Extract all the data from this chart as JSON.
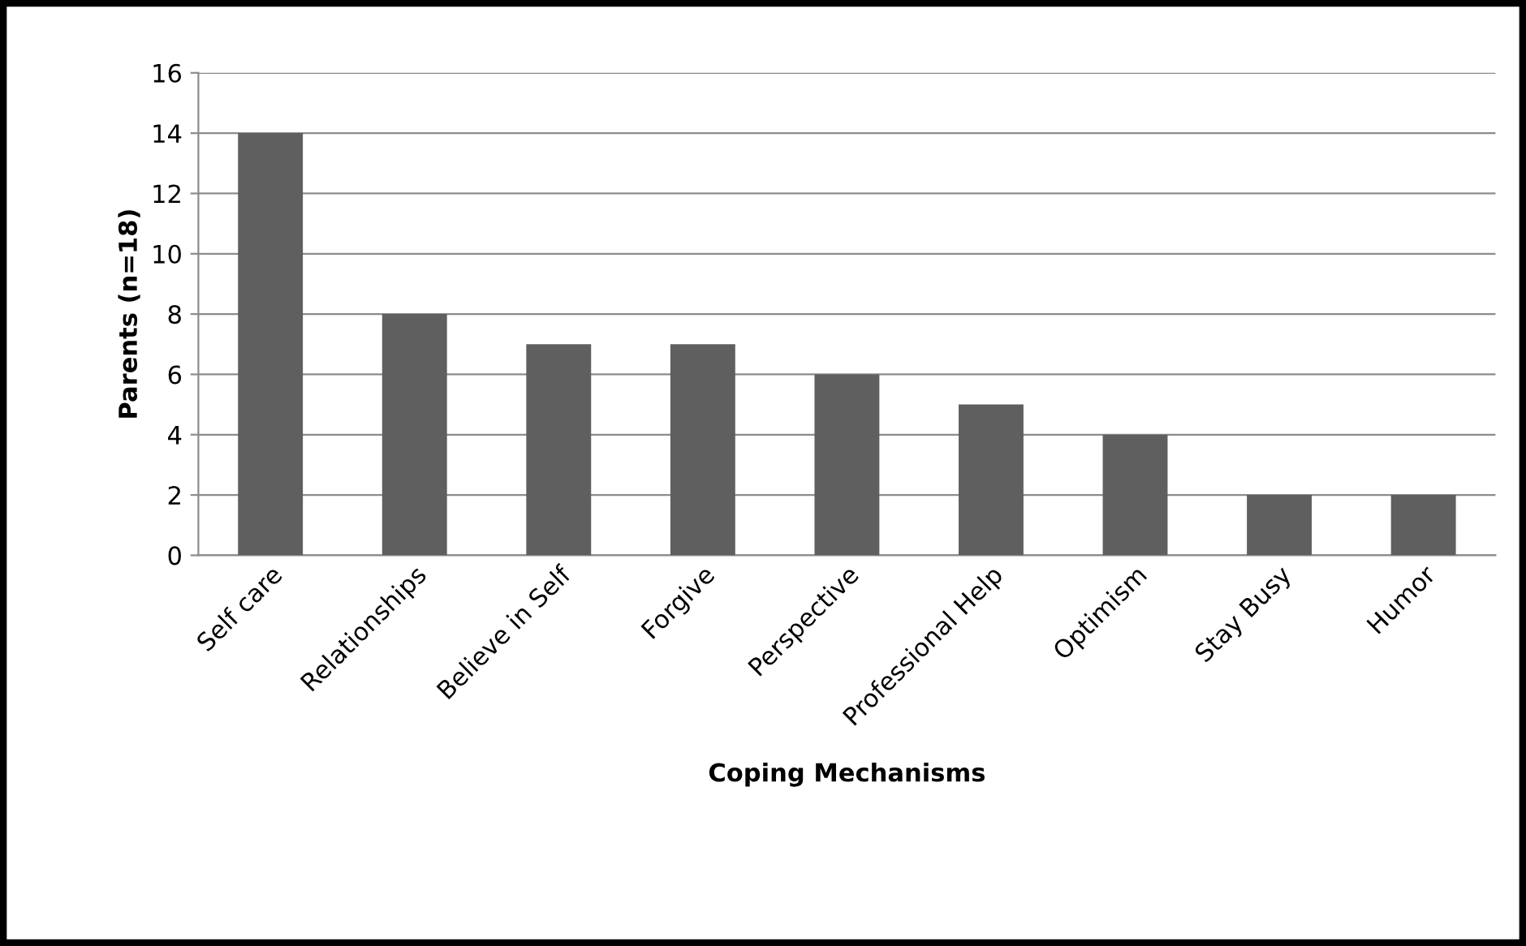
{
  "chart_data": {
    "type": "bar",
    "categories": [
      "Self care",
      "Relationships",
      "Believe in Self",
      "Forgive",
      "Perspective",
      "Professional Help",
      "Optimism",
      "Stay Busy",
      "Humor"
    ],
    "values": [
      14,
      8,
      7,
      7,
      6,
      5,
      4,
      2,
      2
    ],
    "color": "#5f5f5f",
    "xlabel": "Coping Mechanisms",
    "ylabel": "Parents (n=18)",
    "ylim": [
      0,
      16
    ],
    "yticks": [
      0,
      2,
      4,
      6,
      8,
      10,
      12,
      14,
      16
    ],
    "grid": "y",
    "legend": false
  }
}
